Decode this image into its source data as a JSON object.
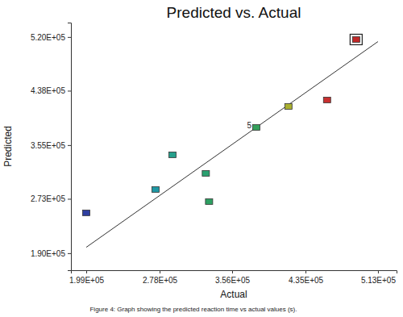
{
  "chart_data": {
    "type": "scatter",
    "title": "Predicted vs. Actual",
    "x_label": "Actual",
    "y_label": "Predicted",
    "caption": "Figure 4: Graph showing the predicted reaction time vs actual values (s).",
    "x": [
      199000,
      273600,
      291800,
      327700,
      331200,
      382000,
      416600,
      458200,
      489500
    ],
    "values": [
      251600,
      287300,
      340200,
      311900,
      268800,
      382000,
      414000,
      423900,
      516200
    ],
    "colors": [
      "#2f3fa0",
      "#1f98a4",
      "#26a08c",
      "#2aa070",
      "#2ea062",
      "#33a05c",
      "#aab030",
      "#c83030",
      "#c02828"
    ],
    "marker": "square",
    "highlight": [
      8
    ],
    "annotations": [
      {
        "text": "5",
        "index": 5
      }
    ],
    "fit_line": {
      "x": [
        199000,
        513000
      ],
      "values": [
        199000,
        513000
      ]
    },
    "xlim": [
      182500,
      533000
    ],
    "ylim": [
      164000,
      542000
    ],
    "xticks": [
      {
        "value": 199000,
        "label": "1.99E+05"
      },
      {
        "value": 278000,
        "label": "2.78E+05"
      },
      {
        "value": 356000,
        "label": "3.56E+05"
      },
      {
        "value": 435000,
        "label": "4.35E+05"
      },
      {
        "value": 513000,
        "label": "5.13E+05"
      }
    ],
    "yticks": [
      {
        "value": 190000,
        "label": "1.90E+05"
      },
      {
        "value": 273000,
        "label": "2.73E+05"
      },
      {
        "value": 355000,
        "label": "3.55E+05"
      },
      {
        "value": 438000,
        "label": "4.38E+05"
      },
      {
        "value": 520000,
        "label": "5.20E+05"
      }
    ],
    "grid": false
  }
}
